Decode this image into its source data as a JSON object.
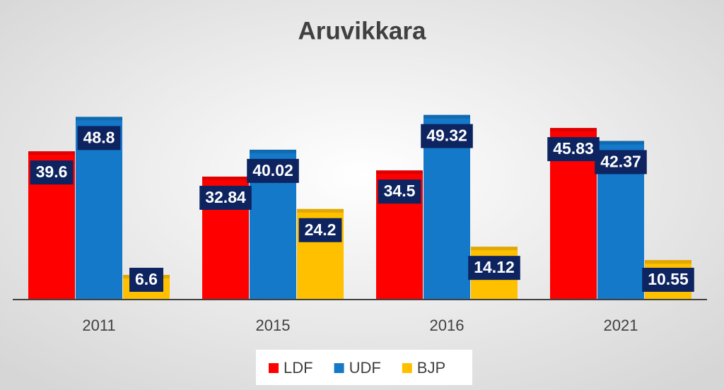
{
  "chart_data": {
    "type": "bar",
    "title": "Aruvikkara",
    "categories": [
      "2011",
      "2015",
      "2016",
      "2021"
    ],
    "series": [
      {
        "name": "LDF",
        "color": "#ff0000",
        "values": [
          39.6,
          32.84,
          34.5,
          45.83
        ]
      },
      {
        "name": "UDF",
        "color": "#1479c9",
        "values": [
          48.8,
          40.02,
          49.32,
          42.37
        ]
      },
      {
        "name": "BJP",
        "color": "#ffc000",
        "values": [
          6.6,
          24.2,
          14.12,
          10.55
        ]
      }
    ]
  }
}
